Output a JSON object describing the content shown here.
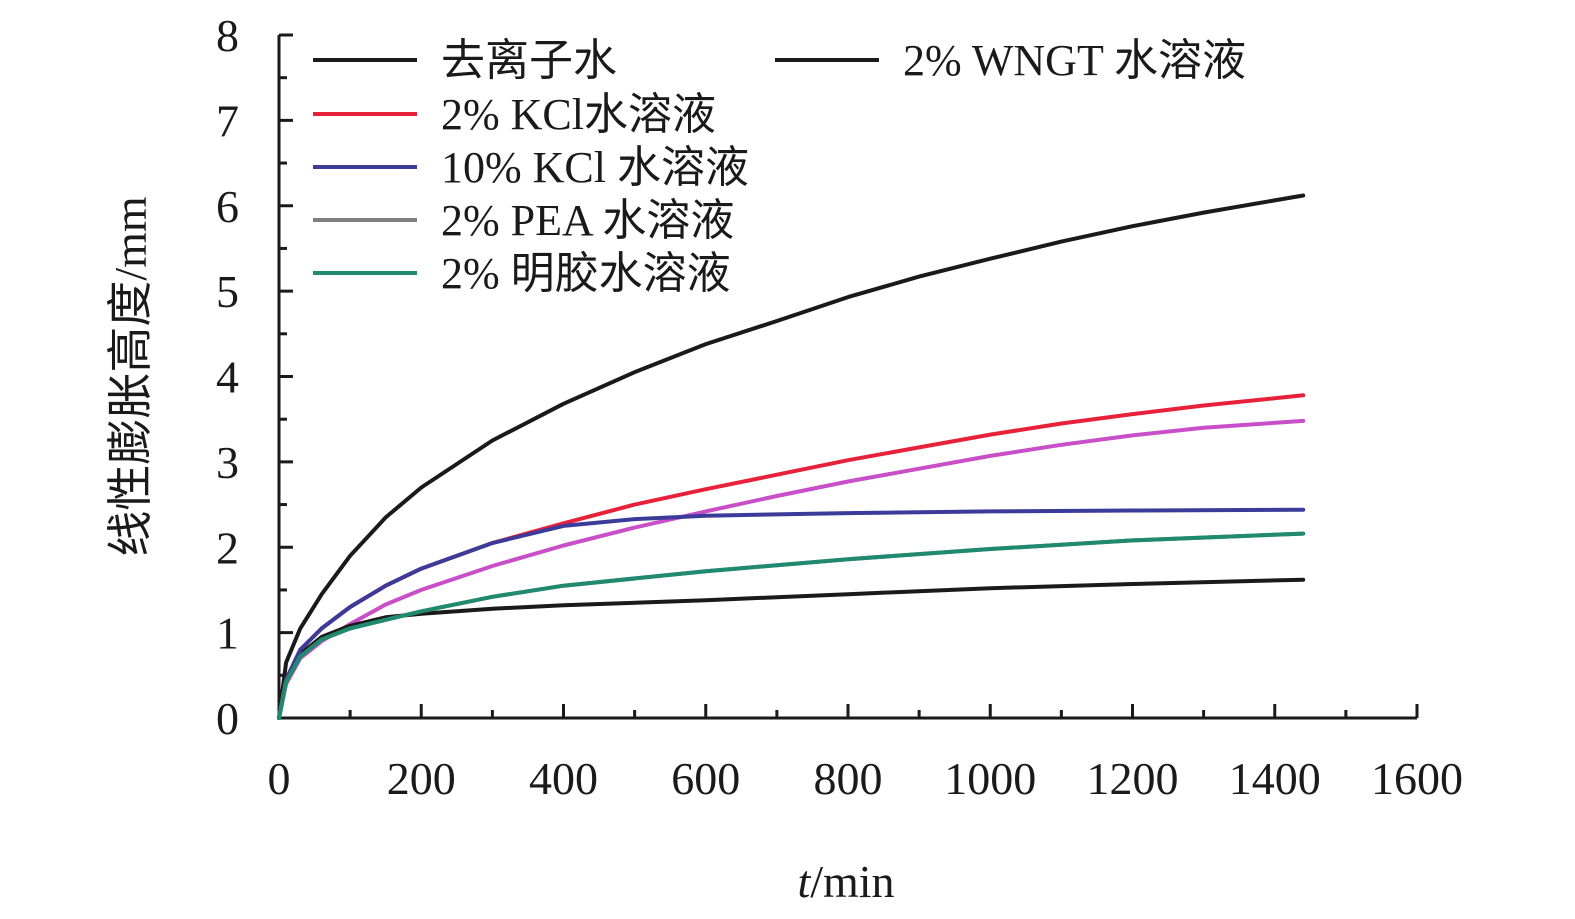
{
  "chart_data": {
    "type": "line",
    "xlabel_italic": "t",
    "xlabel_rest": "/min",
    "ylabel": "线性膨胀高度/mm",
    "xlim": [
      0,
      1600
    ],
    "ylim": [
      0,
      8
    ],
    "xticks": [
      0,
      200,
      400,
      600,
      800,
      1000,
      1200,
      1400,
      1600
    ],
    "yticks": [
      0,
      1,
      2,
      3,
      4,
      5,
      6,
      7,
      8
    ],
    "grid": false,
    "legend_position": "top-left",
    "series": [
      {
        "name": "去离子水",
        "color": "#1a1a1a",
        "x": [
          0,
          10,
          30,
          60,
          100,
          150,
          200,
          300,
          400,
          500,
          600,
          700,
          800,
          900,
          1000,
          1100,
          1200,
          1300,
          1440
        ],
        "y": [
          0,
          0.65,
          1.05,
          1.45,
          1.9,
          2.35,
          2.7,
          3.25,
          3.68,
          4.05,
          4.38,
          4.65,
          4.93,
          5.17,
          5.38,
          5.58,
          5.76,
          5.92,
          6.12
        ]
      },
      {
        "name": "2% WNGT 水溶液",
        "color": "#1a1a1a",
        "x": [
          0,
          10,
          30,
          60,
          100,
          150,
          200,
          300,
          400,
          600,
          800,
          1000,
          1200,
          1440
        ],
        "y": [
          0,
          0.45,
          0.75,
          0.95,
          1.08,
          1.18,
          1.22,
          1.28,
          1.32,
          1.38,
          1.45,
          1.52,
          1.57,
          1.62
        ]
      },
      {
        "name": "2% KCl水溶液",
        "color": "#e8213a",
        "x": [
          0,
          10,
          30,
          60,
          100,
          150,
          200,
          300,
          400,
          500,
          600,
          700,
          800,
          900,
          1000,
          1100,
          1200,
          1300,
          1440
        ],
        "y": [
          0,
          0.45,
          0.8,
          1.05,
          1.3,
          1.55,
          1.75,
          2.05,
          2.28,
          2.5,
          2.68,
          2.85,
          3.02,
          3.17,
          3.32,
          3.45,
          3.56,
          3.66,
          3.78
        ]
      },
      {
        "name": "10% KCl 水溶液",
        "color": "#3b3b9a",
        "x": [
          0,
          10,
          30,
          60,
          100,
          150,
          200,
          300,
          400,
          500,
          600,
          800,
          1000,
          1200,
          1440
        ],
        "y": [
          0,
          0.45,
          0.8,
          1.05,
          1.3,
          1.55,
          1.75,
          2.05,
          2.25,
          2.33,
          2.37,
          2.4,
          2.42,
          2.43,
          2.44
        ]
      },
      {
        "name": "2% PEA 水溶液",
        "color": "#7f7f7f",
        "x": [
          0,
          10,
          30,
          60,
          100,
          150,
          200,
          300,
          400,
          600,
          800,
          1000,
          1200,
          1440
        ],
        "y": [
          0,
          0.42,
          0.72,
          0.92,
          1.05,
          1.15,
          1.25,
          1.42,
          1.55,
          1.72,
          1.86,
          1.98,
          2.08,
          2.16
        ]
      },
      {
        "name": "2% 明胶水溶液",
        "color": "#1f8a6f",
        "x": [
          0,
          10,
          30,
          60,
          100,
          150,
          200,
          300,
          400,
          600,
          800,
          1000,
          1200,
          1440
        ],
        "y": [
          0,
          0.42,
          0.72,
          0.92,
          1.05,
          1.15,
          1.25,
          1.42,
          1.55,
          1.72,
          1.86,
          1.98,
          2.08,
          2.16
        ]
      }
    ],
    "unlabeled_series": [
      {
        "color": "#c84fc8",
        "x": [
          0,
          10,
          30,
          60,
          100,
          150,
          200,
          300,
          400,
          500,
          600,
          700,
          800,
          900,
          1000,
          1100,
          1200,
          1300,
          1440
        ],
        "y": [
          0,
          0.4,
          0.7,
          0.9,
          1.1,
          1.33,
          1.5,
          1.78,
          2.02,
          2.23,
          2.42,
          2.6,
          2.77,
          2.92,
          3.07,
          3.2,
          3.31,
          3.4,
          3.48
        ]
      }
    ]
  }
}
